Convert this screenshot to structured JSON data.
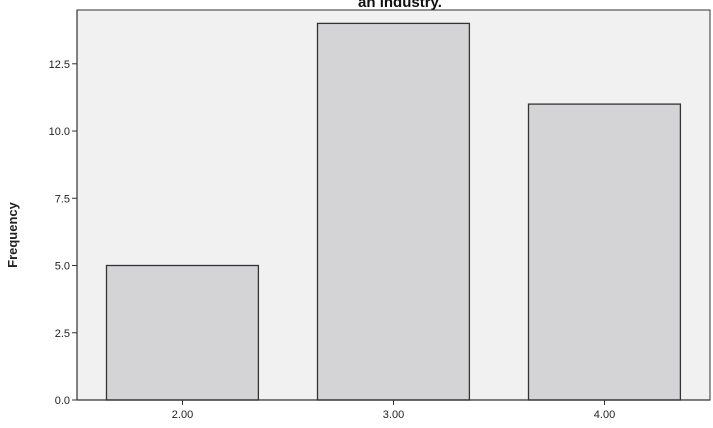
{
  "chart_data": {
    "type": "bar",
    "title": "an industry.",
    "xlabel": "",
    "ylabel": "Frequency",
    "categories": [
      "2.00",
      "3.00",
      "4.00"
    ],
    "values": [
      5,
      14,
      11
    ],
    "yticks": [
      "0.0",
      "2.5",
      "5.0",
      "7.5",
      "10.0",
      "12.5"
    ],
    "ylim": [
      0,
      14.5
    ],
    "grid": false,
    "legend": "none",
    "colors": {
      "plot_background": "#f1f1f1",
      "bar_fill": "#d4d4d6",
      "bar_stroke": "#333333",
      "axis": "#333333"
    }
  }
}
